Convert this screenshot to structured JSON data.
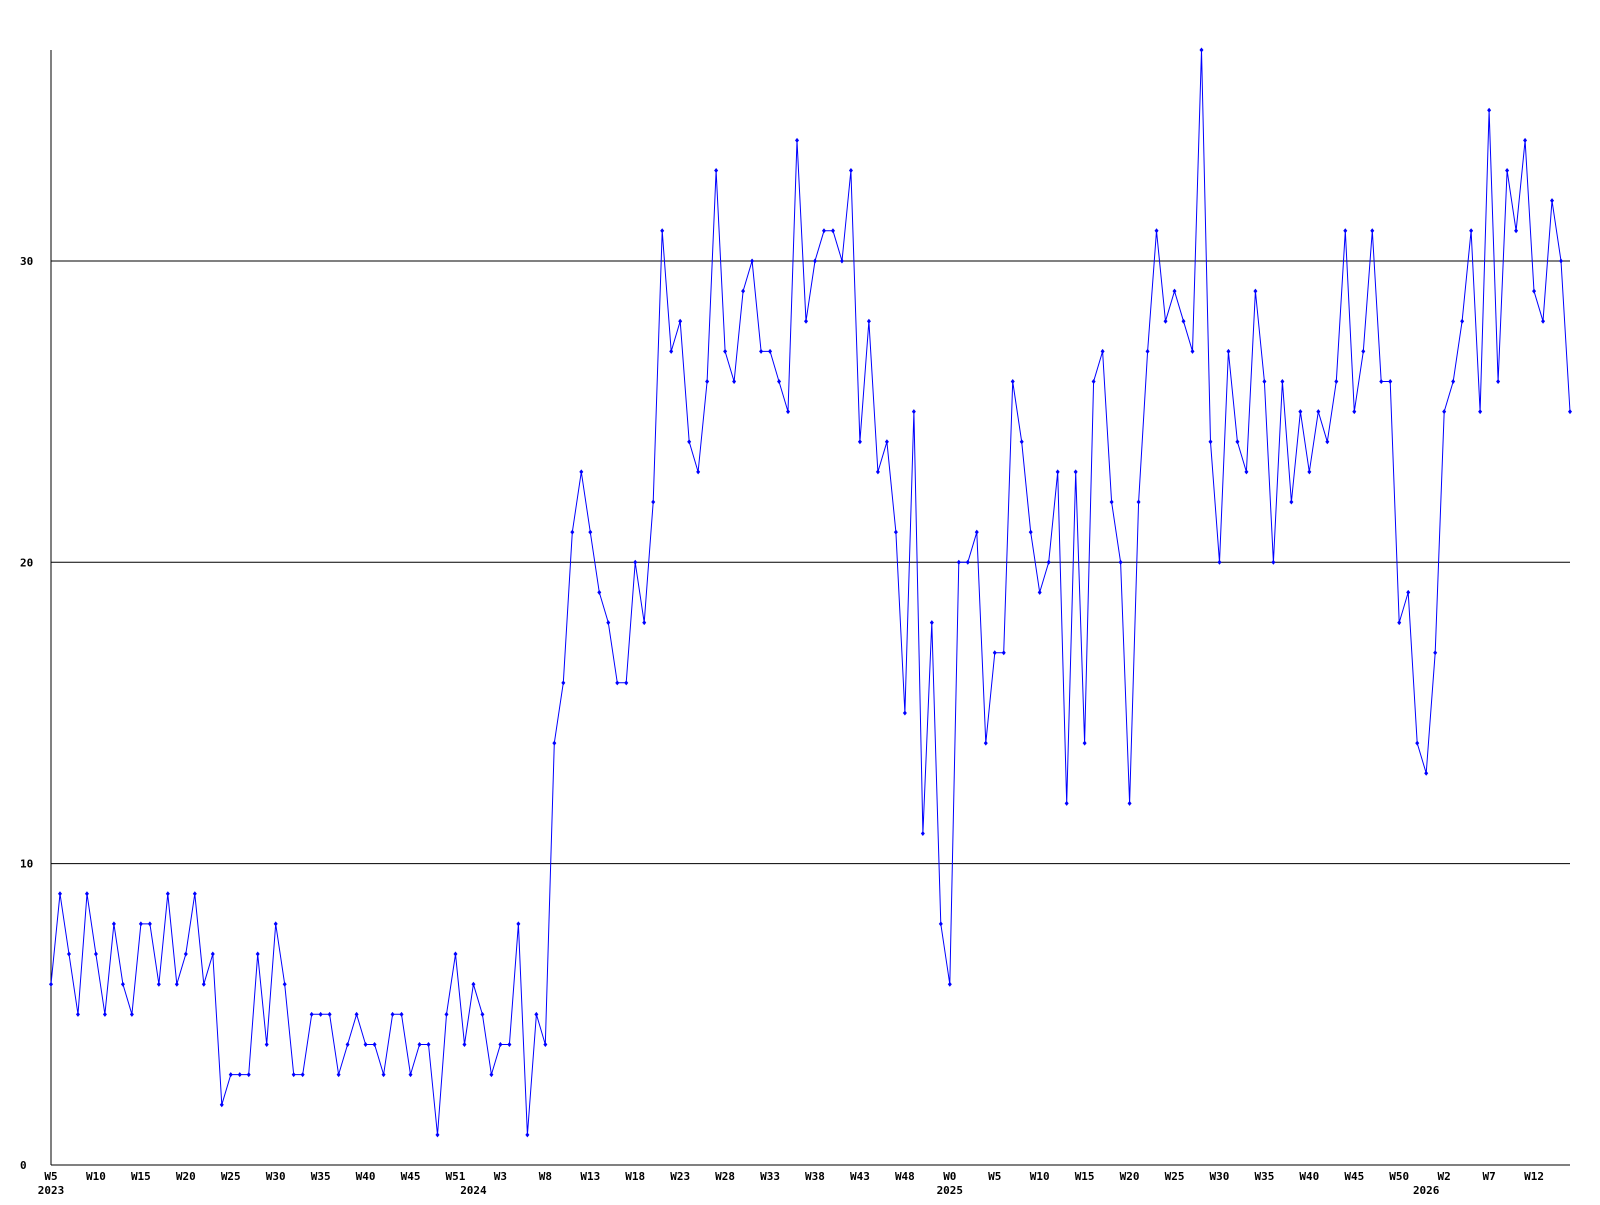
{
  "chart_data": {
    "type": "line",
    "categories": [
      "W5",
      null,
      null,
      null,
      null,
      "W10",
      null,
      null,
      null,
      null,
      "W15",
      null,
      null,
      null,
      null,
      "W20",
      null,
      null,
      null,
      null,
      "W25",
      null,
      null,
      null,
      null,
      "W30",
      null,
      null,
      null,
      null,
      "W35",
      null,
      null,
      null,
      null,
      "W40",
      null,
      null,
      null,
      null,
      "W45",
      null,
      null,
      null,
      null,
      "W51",
      null,
      null,
      null,
      null,
      "W3",
      null,
      null,
      null,
      null,
      "W8",
      null,
      null,
      null,
      null,
      "W13",
      null,
      null,
      null,
      null,
      "W18",
      null,
      null,
      null,
      null,
      "W23",
      null,
      null,
      null,
      null,
      "W28",
      null,
      null,
      null,
      null,
      "W33",
      null,
      null,
      null,
      null,
      "W38",
      null,
      null,
      null,
      null,
      "W43",
      null,
      null,
      null,
      null,
      "W48",
      null,
      null,
      null,
      null,
      "W0",
      null,
      null,
      null,
      null,
      "W5",
      null,
      null,
      null,
      null,
      "W10",
      null,
      null,
      null,
      null,
      "W15",
      null,
      null,
      null,
      null,
      "W20",
      null,
      null,
      null,
      null,
      "W25",
      null,
      null,
      null,
      null,
      "W30",
      null,
      null,
      null,
      null,
      "W35",
      null,
      null,
      null,
      null,
      "W40",
      null,
      null,
      null,
      null,
      "W45",
      null,
      null,
      null,
      null,
      "W50",
      null,
      null,
      null,
      null,
      "W2",
      null,
      null,
      null,
      null,
      "W7",
      null,
      null,
      null,
      null,
      "W12",
      null,
      null,
      null,
      null
    ],
    "year_labels": [
      {
        "value": 0,
        "label": "2023"
      },
      {
        "value": 47,
        "label": "2024"
      },
      {
        "value": 100,
        "label": "2025"
      },
      {
        "value": 153,
        "label": "2026"
      }
    ],
    "series": [
      {
        "color": "#0000ff",
        "values": [
          6,
          9,
          7,
          5,
          9,
          7,
          5,
          8,
          6,
          5,
          8,
          8,
          6,
          9,
          6,
          7,
          9,
          6,
          7,
          2,
          3,
          3,
          3,
          7,
          4,
          8,
          6,
          3,
          3,
          5,
          5,
          5,
          3,
          4,
          5,
          4,
          4,
          3,
          5,
          5,
          3,
          4,
          4,
          1,
          5,
          7,
          4,
          6,
          5,
          3,
          4,
          4,
          8,
          1,
          5,
          4,
          14,
          16,
          21,
          23,
          21,
          19,
          18,
          16,
          16,
          20,
          18,
          22,
          31,
          27,
          28,
          24,
          23,
          26,
          33,
          27,
          26,
          29,
          30,
          27,
          27,
          26,
          25,
          34,
          28,
          30,
          31,
          31,
          30,
          33,
          24,
          28,
          23,
          24,
          21,
          15,
          25,
          11,
          18,
          8,
          6,
          20,
          20,
          21,
          14,
          17,
          17,
          26,
          24,
          21,
          19,
          20,
          23,
          12,
          23,
          14,
          26,
          27,
          22,
          20,
          12,
          22,
          27,
          31,
          28,
          29,
          28,
          27,
          37,
          24,
          20,
          27,
          24,
          23,
          29,
          26,
          20,
          26,
          22,
          25,
          23,
          25,
          24,
          26,
          31,
          25,
          27,
          31,
          26,
          26,
          18,
          19,
          14,
          13,
          17,
          25,
          26,
          28,
          31,
          25,
          35,
          26,
          33,
          31,
          34,
          29,
          28,
          32,
          30,
          25
        ]
      }
    ],
    "ylim": [
      0,
      37
    ],
    "yticks": [
      0,
      10,
      20,
      30
    ],
    "grid": true
  }
}
